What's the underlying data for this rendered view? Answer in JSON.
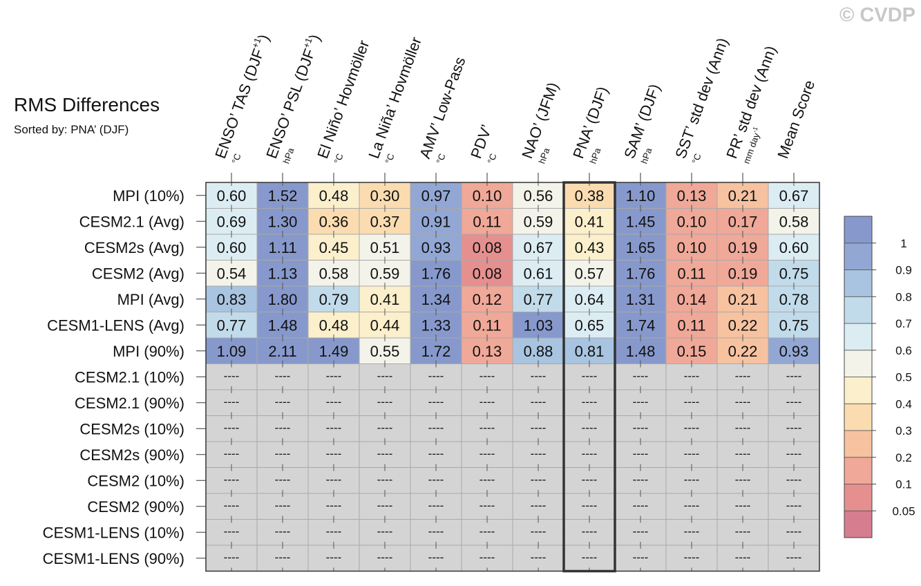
{
  "watermark": "© CVDP",
  "chart_data": {
    "type": "heatmap",
    "title": "RMS Differences",
    "subtitle": "Sorted by: PNA’ (DJF)",
    "columns": [
      {
        "label": "ENSO’ TAS (DJF",
        "sup": "+1",
        "close": ")",
        "unit": "°C"
      },
      {
        "label": "ENSO’ PSL (DJF",
        "sup": "+1",
        "close": ")",
        "unit": "hPa"
      },
      {
        "label": "El Niño’ Hovmöller",
        "unit": "°C"
      },
      {
        "label": "La Niña’ Hovmöller",
        "unit": "°C"
      },
      {
        "label": "AMV’ Low-Pass",
        "unit": "°C"
      },
      {
        "label": "PDV’",
        "unit": "°C"
      },
      {
        "label": "NAO’ (JFM)",
        "unit": "hPa"
      },
      {
        "label": "PNA’ (DJF)",
        "unit": "hPa"
      },
      {
        "label": "SAM’ (DJF)",
        "unit": "hPa"
      },
      {
        "label": "SST’ std dev (Ann)",
        "unit": "°C"
      },
      {
        "label": "PR’ std dev (Ann)",
        "unit": "mm day",
        "unit_sup": "-1"
      },
      {
        "label": "Mean Score",
        "unit": ""
      }
    ],
    "rows": [
      {
        "name": "MPI (10%)",
        "values": [
          0.6,
          1.52,
          0.48,
          0.3,
          0.97,
          0.1,
          0.56,
          0.38,
          1.1,
          0.13,
          0.21,
          0.67
        ]
      },
      {
        "name": "CESM2.1 (Avg)",
        "values": [
          0.69,
          1.3,
          0.36,
          0.37,
          0.91,
          0.11,
          0.59,
          0.41,
          1.45,
          0.1,
          0.17,
          0.58
        ]
      },
      {
        "name": "CESM2s (Avg)",
        "values": [
          0.6,
          1.11,
          0.45,
          0.51,
          0.93,
          0.08,
          0.67,
          0.43,
          1.65,
          0.1,
          0.19,
          0.6
        ]
      },
      {
        "name": "CESM2 (Avg)",
        "values": [
          0.54,
          1.13,
          0.58,
          0.59,
          1.76,
          0.08,
          0.61,
          0.57,
          1.76,
          0.11,
          0.19,
          0.75
        ]
      },
      {
        "name": "MPI (Avg)",
        "values": [
          0.83,
          1.8,
          0.79,
          0.41,
          1.34,
          0.12,
          0.77,
          0.64,
          1.31,
          0.14,
          0.21,
          0.78
        ]
      },
      {
        "name": "CESM1-LENS (Avg)",
        "values": [
          0.77,
          1.48,
          0.48,
          0.44,
          1.33,
          0.11,
          1.03,
          0.65,
          1.74,
          0.11,
          0.22,
          0.75
        ]
      },
      {
        "name": "MPI (90%)",
        "values": [
          1.09,
          2.11,
          1.49,
          0.55,
          1.72,
          0.13,
          0.88,
          0.81,
          1.48,
          0.15,
          0.22,
          0.93
        ]
      },
      {
        "name": "CESM2.1 (10%)",
        "values": null
      },
      {
        "name": "CESM2.1 (90%)",
        "values": null
      },
      {
        "name": "CESM2s (10%)",
        "values": null
      },
      {
        "name": "CESM2s (90%)",
        "values": null
      },
      {
        "name": "CESM2 (10%)",
        "values": null
      },
      {
        "name": "CESM2 (90%)",
        "values": null
      },
      {
        "name": "CESM1-LENS (10%)",
        "values": null
      },
      {
        "name": "CESM1-LENS (90%)",
        "values": null
      }
    ],
    "missing_label": "----",
    "highlight_column": 7,
    "colorbar": {
      "levels": [
        0.05,
        0.1,
        0.2,
        0.3,
        0.4,
        0.5,
        0.6,
        0.7,
        0.8,
        0.9,
        1
      ],
      "tick_labels": [
        "0.05",
        "0.1",
        "0.2",
        "0.3",
        "0.4",
        "0.5",
        "0.6",
        "0.7",
        "0.8",
        "0.9",
        "1"
      ],
      "colors": [
        "#d67d8f",
        "#e68f8f",
        "#f0a898",
        "#f6c2a0",
        "#fadcb0",
        "#fbefcc",
        "#f3f3ea",
        "#dcecf3",
        "#c2dbea",
        "#a8c4e0",
        "#92a7d4",
        "#8799cc"
      ],
      "missing_color": "#d4d4d4"
    }
  }
}
